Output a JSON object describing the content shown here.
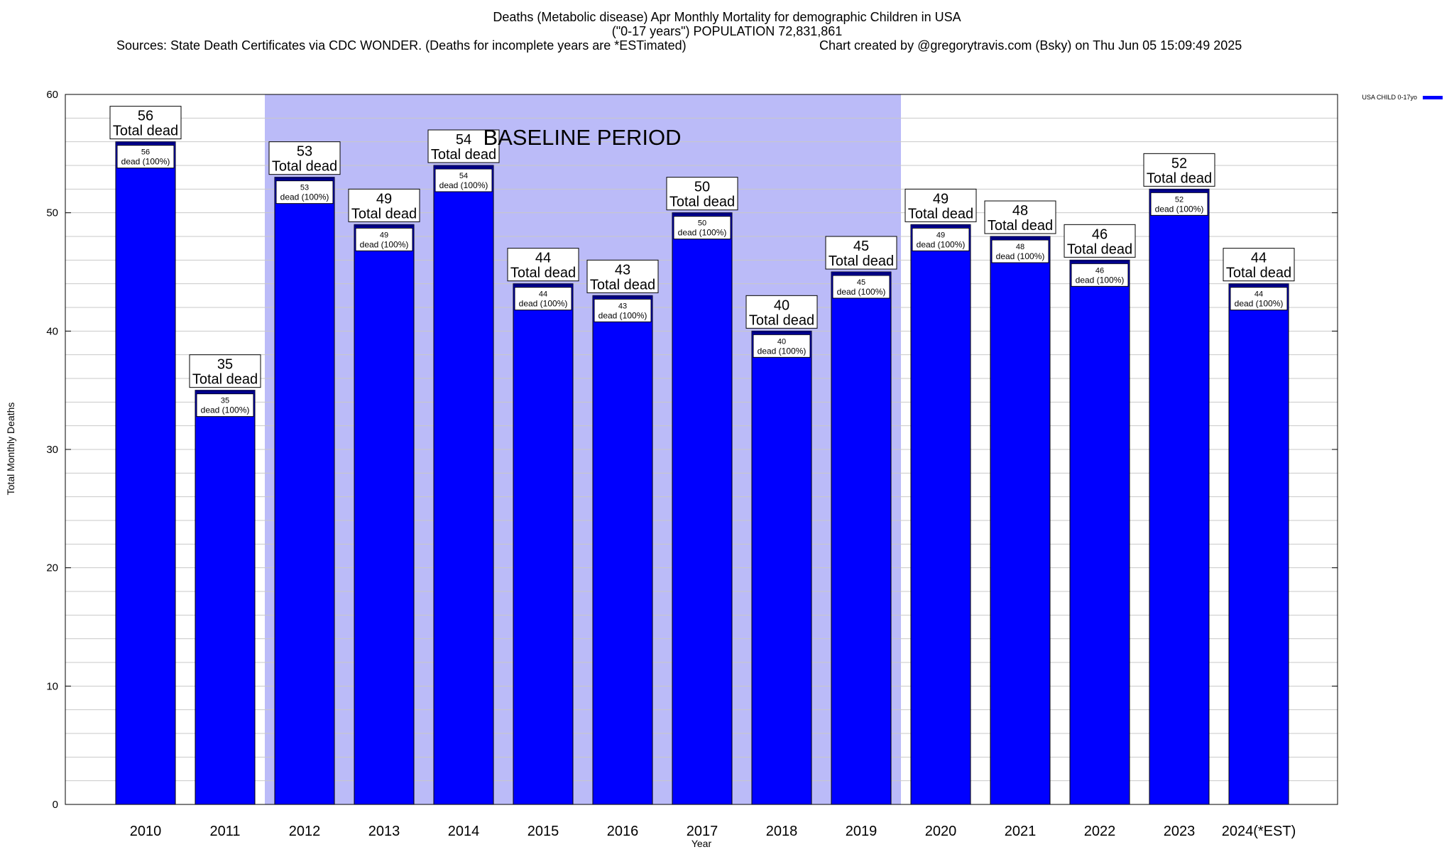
{
  "title": {
    "line1": "Deaths (Metabolic disease) Apr Monthly Mortality for demographic Children in USA",
    "line2": "(\"0-17 years\") POPULATION 72,831,861",
    "sources": "Sources: State Death Certificates via CDC WONDER. (Deaths for incomplete years are *ESTimated)",
    "credit": "Chart created by @gregorytravis.com (Bsky) on Thu Jun 05 15:09:49 2025"
  },
  "colors": {
    "bar_fill": "#0000ff",
    "bar_outline": "#000080",
    "baseline_shade": "#bbbbf8",
    "grid": "#c8c8c8"
  },
  "chart_data": {
    "type": "bar",
    "categories": [
      "2010",
      "2011",
      "2012",
      "2013",
      "2014",
      "2015",
      "2016",
      "2017",
      "2018",
      "2019",
      "2020",
      "2021",
      "2022",
      "2023",
      "2024(*EST)"
    ],
    "series": [
      {
        "name": "USA CHILD 0-17yo",
        "values": [
          56,
          35,
          53,
          49,
          54,
          44,
          43,
          50,
          40,
          45,
          49,
          48,
          46,
          52,
          44
        ]
      }
    ],
    "total_label": "Total dead",
    "inner_label": "dead (100%)",
    "xlabel": "Year",
    "ylabel": "Total Monthly Deaths",
    "ylim": [
      0,
      60
    ],
    "yticks": [
      0,
      10,
      20,
      30,
      40,
      50,
      60
    ],
    "grid": true,
    "legend": "top-right",
    "baseline": {
      "label": "BASELINE PERIOD",
      "from": "2012",
      "to": "2019"
    }
  }
}
